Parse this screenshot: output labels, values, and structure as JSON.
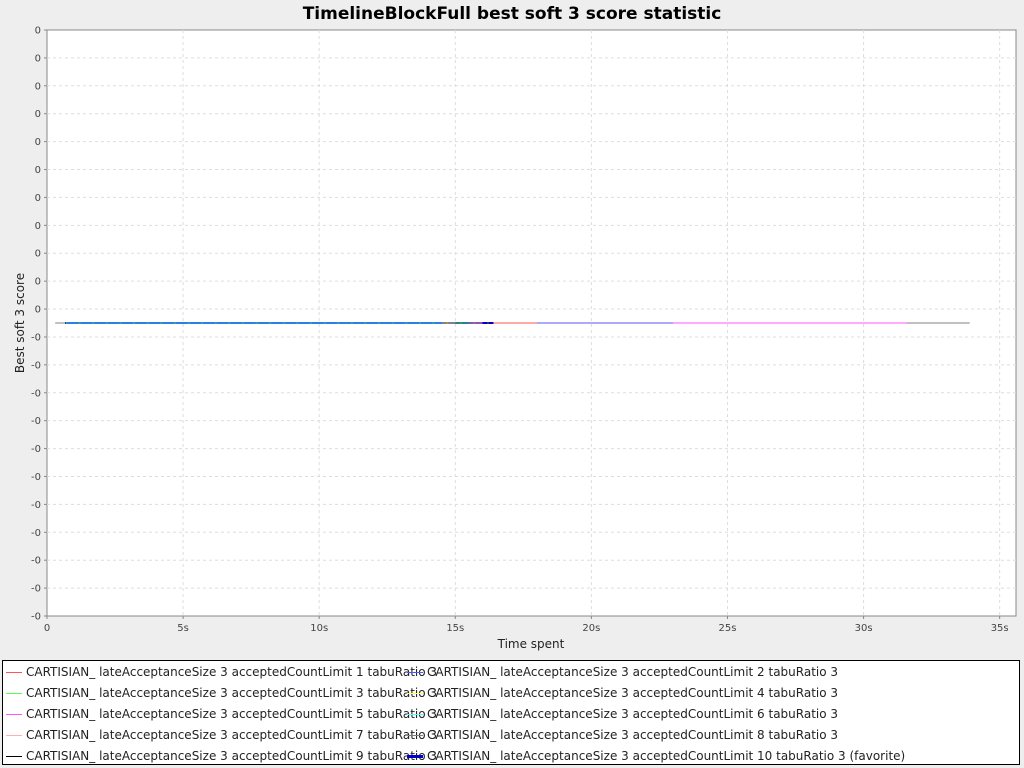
{
  "chart_data": {
    "type": "line",
    "title": "TimelineBlockFull best soft 3 score statistic",
    "xlabel": "Time spent",
    "ylabel": "Best soft 3 score",
    "xlim": [
      0,
      35.6
    ],
    "ylim": [
      -10,
      10
    ],
    "x_ticks": [
      "0",
      "5s",
      "10s",
      "15s",
      "20s",
      "25s",
      "30s",
      "35s"
    ],
    "x_tick_values": [
      0,
      5,
      10,
      15,
      20,
      25,
      30,
      35
    ],
    "y_ticks": [
      "0",
      "0",
      "0",
      "0",
      "0",
      "0",
      "0",
      "0",
      "0",
      "0",
      "0",
      "-0",
      "-0",
      "-0",
      "-0",
      "-0",
      "-0",
      "-0",
      "-0",
      "-0",
      "-0",
      "-0"
    ],
    "grid": true,
    "legend_placement": "bottom",
    "series": [
      {
        "name": "CARTISIAN_ lateAcceptanceSize 3 acceptedCountLimit 1 tabuRatio 3",
        "color": "#ff5555",
        "x": [
          0.7,
          18.0
        ],
        "y": [
          0,
          0
        ]
      },
      {
        "name": "CARTISIAN_ lateAcceptanceSize 3 acceptedCountLimit 2 tabuRatio 3",
        "color": "#5555ff",
        "x": [
          0.7,
          23.0
        ],
        "y": [
          0,
          0
        ]
      },
      {
        "name": "CARTISIAN_ lateAcceptanceSize 3 acceptedCountLimit 3 tabuRatio 3",
        "color": "#55ff55",
        "x": [
          0.7,
          15.5
        ],
        "y": [
          0,
          0
        ]
      },
      {
        "name": "CARTISIAN_ lateAcceptanceSize 3 acceptedCountLimit 4 tabuRatio 3",
        "color": "#ffff55",
        "x": [
          0.7,
          15.0
        ],
        "y": [
          0,
          0
        ]
      },
      {
        "name": "CARTISIAN_ lateAcceptanceSize 3 acceptedCountLimit 5 tabuRatio 3",
        "color": "#ff55ff",
        "x": [
          0.7,
          31.6
        ],
        "y": [
          0,
          0
        ]
      },
      {
        "name": "CARTISIAN_ lateAcceptanceSize 3 acceptedCountLimit 6 tabuRatio 3",
        "color": "#55ffff",
        "x": [
          0.7,
          14.5
        ],
        "y": [
          0,
          0
        ]
      },
      {
        "name": "CARTISIAN_ lateAcceptanceSize 3 acceptedCountLimit 7 tabuRatio 3",
        "color": "#ffafaf",
        "x": [
          0.7,
          16.0
        ],
        "y": [
          0,
          0
        ]
      },
      {
        "name": "CARTISIAN_ lateAcceptanceSize 3 acceptedCountLimit 8 tabuRatio 3",
        "color": "#808080",
        "x": [
          0.3,
          33.9
        ],
        "y": [
          0,
          0
        ]
      },
      {
        "name": "CARTISIAN_ lateAcceptanceSize 3 acceptedCountLimit 9 tabuRatio 3",
        "color": "#000000",
        "x": [
          0.7,
          16.4
        ],
        "y": [
          0,
          0
        ]
      },
      {
        "name": "CARTISIAN_ lateAcceptanceSize 3 acceptedCountLimit 10 tabuRatio 3 (favorite)",
        "color": "#0000cc",
        "x": [
          0.7,
          16.4
        ],
        "y": [
          0,
          0
        ],
        "favorite": true
      }
    ]
  }
}
